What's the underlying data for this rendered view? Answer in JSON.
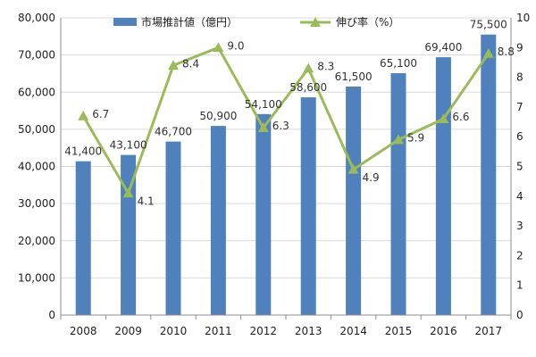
{
  "chart_data": {
    "type": "bar",
    "categories": [
      "2008",
      "2009",
      "2010",
      "2011",
      "2012",
      "2013",
      "2014",
      "2015",
      "2016",
      "2017"
    ],
    "series": [
      {
        "name": "市場推計値（億円）",
        "type": "bar",
        "axis": "left",
        "values": [
          41400,
          43100,
          46700,
          50900,
          54100,
          58600,
          61500,
          65100,
          69400,
          75500
        ],
        "labels": [
          "41,400",
          "43,100",
          "46,700",
          "50,900",
          "54,100",
          "58,600",
          "61,500",
          "65,100",
          "69,400",
          "75,500"
        ]
      },
      {
        "name": "伸び率（%）",
        "type": "line",
        "axis": "right",
        "values": [
          6.7,
          4.1,
          8.4,
          9.0,
          6.3,
          8.3,
          4.9,
          5.9,
          6.6,
          8.8
        ],
        "labels": [
          "6.7",
          "4.1",
          "8.4",
          "9.0",
          "6.3",
          "8.3",
          "4.9",
          "5.9",
          "6.6",
          "8.8"
        ]
      }
    ],
    "y_left": {
      "min": 0,
      "max": 80000,
      "ticks": [
        "0",
        "10,000",
        "20,000",
        "30,000",
        "40,000",
        "50,000",
        "60,000",
        "70,000",
        "80,000"
      ]
    },
    "y_right": {
      "min": 0,
      "max": 10,
      "ticks": [
        "0",
        "1",
        "2",
        "3",
        "4",
        "5",
        "6",
        "7",
        "8",
        "9",
        "10"
      ]
    },
    "legend_position": "top",
    "grid": true,
    "colors": {
      "bar": "#4f81bd",
      "line": "#9bbb59",
      "grid": "#d9d9d9",
      "axis": "#8c8c8c"
    }
  }
}
